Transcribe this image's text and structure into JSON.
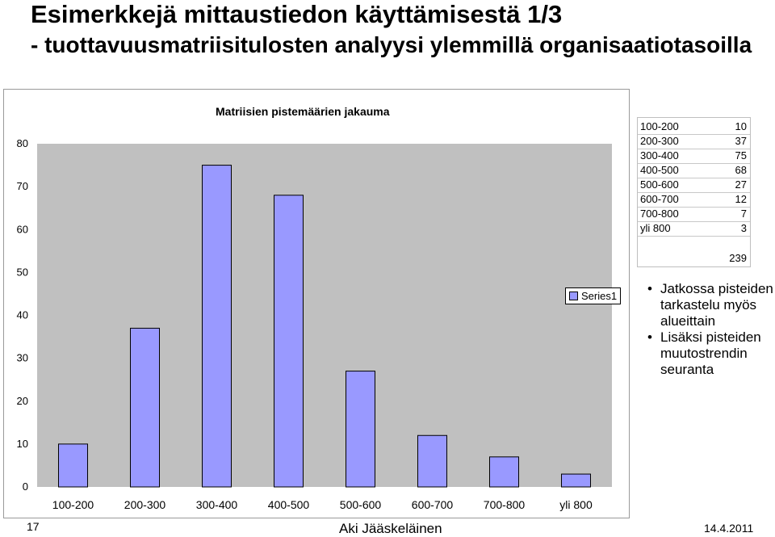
{
  "slide": {
    "title_line1": "Esimerkkejä mittaustiedon käyttämisestä 1/3",
    "title_line2": "- tuottavuusmatriisitulosten analyysi ylemmillä organisaatiotasoilla",
    "footer_page": "17",
    "footer_author": "Aki Jääskeläinen",
    "footer_date": "14.4.2011"
  },
  "chart_data": {
    "type": "bar",
    "title": "Matriisien pistemäärien jakauma",
    "categories": [
      "100-200",
      "200-300",
      "300-400",
      "400-500",
      "500-600",
      "600-700",
      "700-800",
      "yli 800"
    ],
    "series": [
      {
        "name": "Series1",
        "values": [
          10,
          37,
          75,
          68,
          27,
          12,
          7,
          3
        ],
        "color": "#9999ff"
      }
    ],
    "xlabel": "",
    "ylabel": "",
    "ylim": [
      0,
      80
    ],
    "yticks": [
      0,
      10,
      20,
      30,
      40,
      50,
      60,
      70,
      80
    ],
    "plot_background": "#c0c0c0",
    "grid": false,
    "legend_position": "right"
  },
  "side_table": {
    "rows": [
      {
        "range": "100-200",
        "count": "10"
      },
      {
        "range": "200-300",
        "count": "37"
      },
      {
        "range": "300-400",
        "count": "75"
      },
      {
        "range": "400-500",
        "count": "68"
      },
      {
        "range": "500-600",
        "count": "27"
      },
      {
        "range": "600-700",
        "count": "12"
      },
      {
        "range": "700-800",
        "count": "7"
      },
      {
        "range": "yli 800",
        "count": "3"
      }
    ],
    "total": "239"
  },
  "bullets": [
    "Jatkossa pisteiden tarkastelu myös alueittain",
    "Lisäksi pisteiden muutostrendin seuranta"
  ]
}
